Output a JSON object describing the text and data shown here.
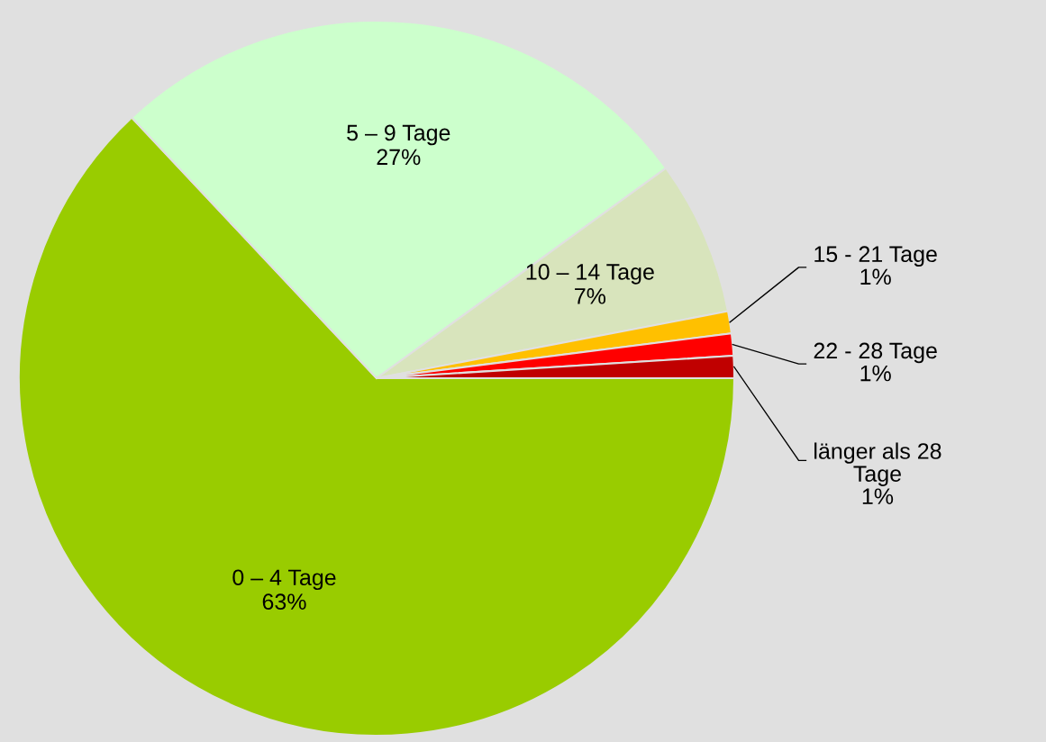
{
  "chart_data": {
    "type": "pie",
    "categories": [
      "0 – 4 Tage",
      "5 – 9 Tage",
      "10 – 14 Tage",
      "15 - 21 Tage",
      "22 - 28 Tage",
      "länger als 28 Tage"
    ],
    "values": [
      63,
      27,
      7,
      1,
      1,
      1
    ],
    "colors": [
      "#99cc00",
      "#ccffcc",
      "#d8e4bc",
      "#ffc000",
      "#ff0000",
      "#c00000"
    ],
    "value_labels": [
      "63%",
      "27%",
      "7%",
      "1%",
      "1%",
      "1%"
    ],
    "legend": false
  }
}
